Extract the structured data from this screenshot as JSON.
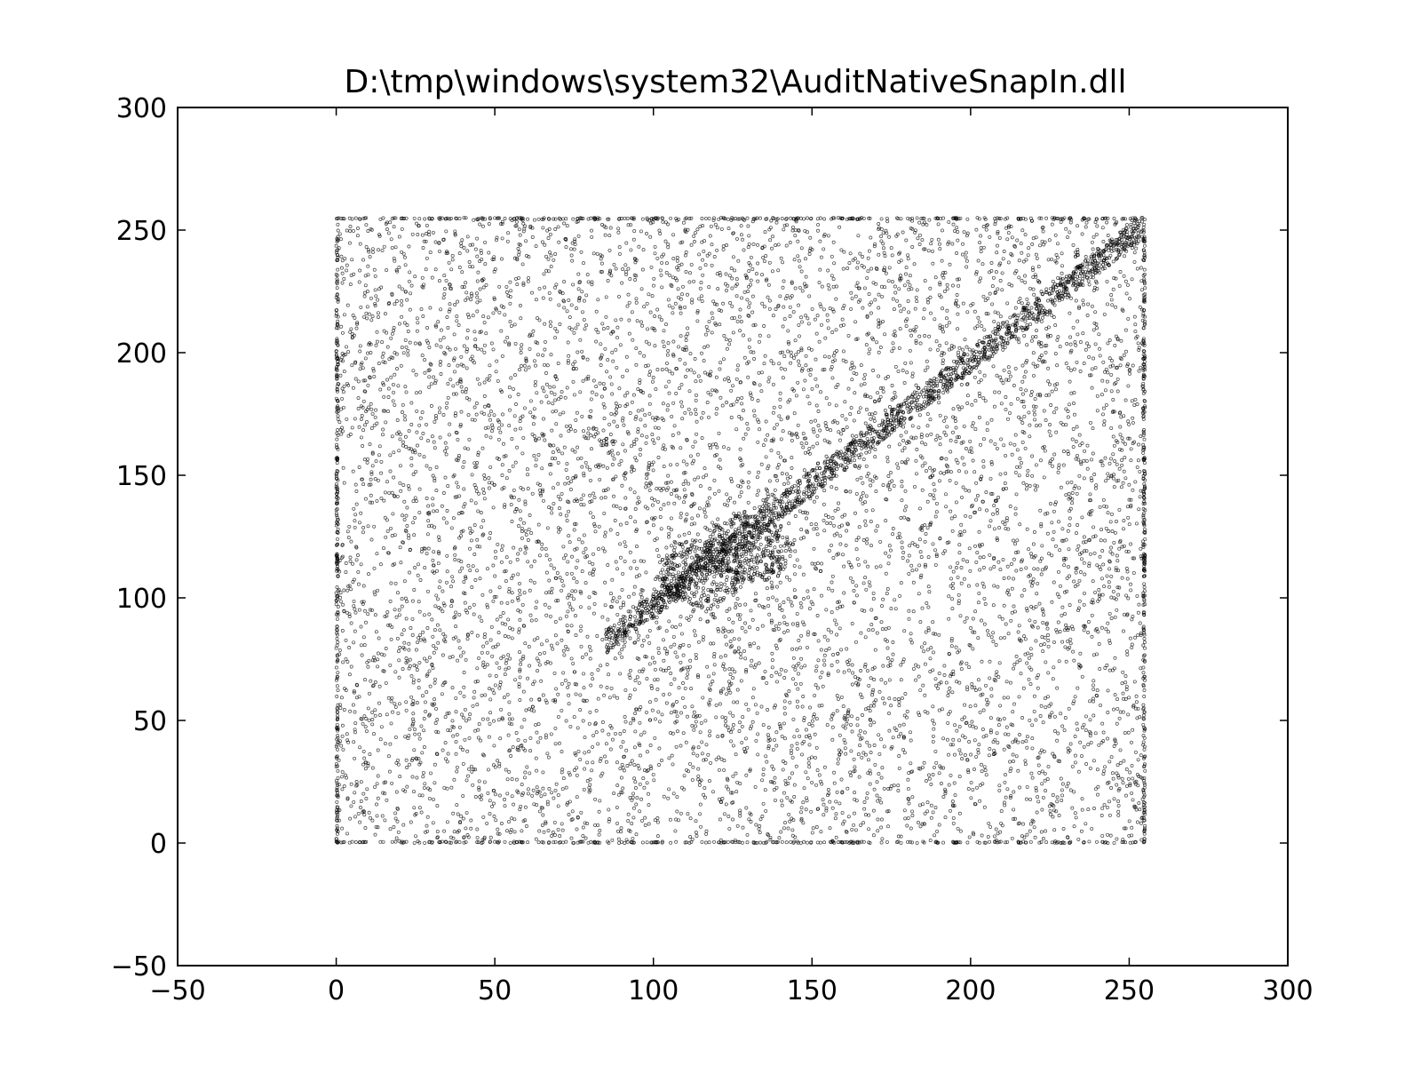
{
  "chart_data": {
    "type": "scatter",
    "title": "D:\\tmp\\windows\\system32\\AuditNativeSnapIn.dll",
    "xlabel": "",
    "ylabel": "",
    "xlim": [
      -50,
      300
    ],
    "ylim": [
      -50,
      300
    ],
    "xticks": [
      -50,
      0,
      50,
      100,
      150,
      200,
      250,
      300
    ],
    "yticks": [
      -50,
      0,
      50,
      100,
      150,
      200,
      250,
      300
    ],
    "xtick_labels": [
      "−50",
      "0",
      "50",
      "100",
      "150",
      "200",
      "250",
      "300"
    ],
    "ytick_labels": [
      "−50",
      "0",
      "50",
      "100",
      "150",
      "200",
      "250",
      "300"
    ],
    "grid": false,
    "legend": "none",
    "marker": "circle",
    "marker_color": "#000000",
    "point_domain": {
      "x": [
        0,
        255
      ],
      "y": [
        0,
        255
      ]
    },
    "features": [
      {
        "kind": "diagonal-band",
        "from": [
          85,
          85
        ],
        "to": [
          255,
          255
        ]
      },
      {
        "kind": "dense-cluster",
        "center": [
          115,
          110
        ]
      },
      {
        "kind": "dense-cluster",
        "center": [
          130,
          120
        ]
      },
      {
        "kind": "dense-edges",
        "x": [
          0,
          255
        ],
        "y": [
          0,
          255
        ]
      }
    ]
  }
}
